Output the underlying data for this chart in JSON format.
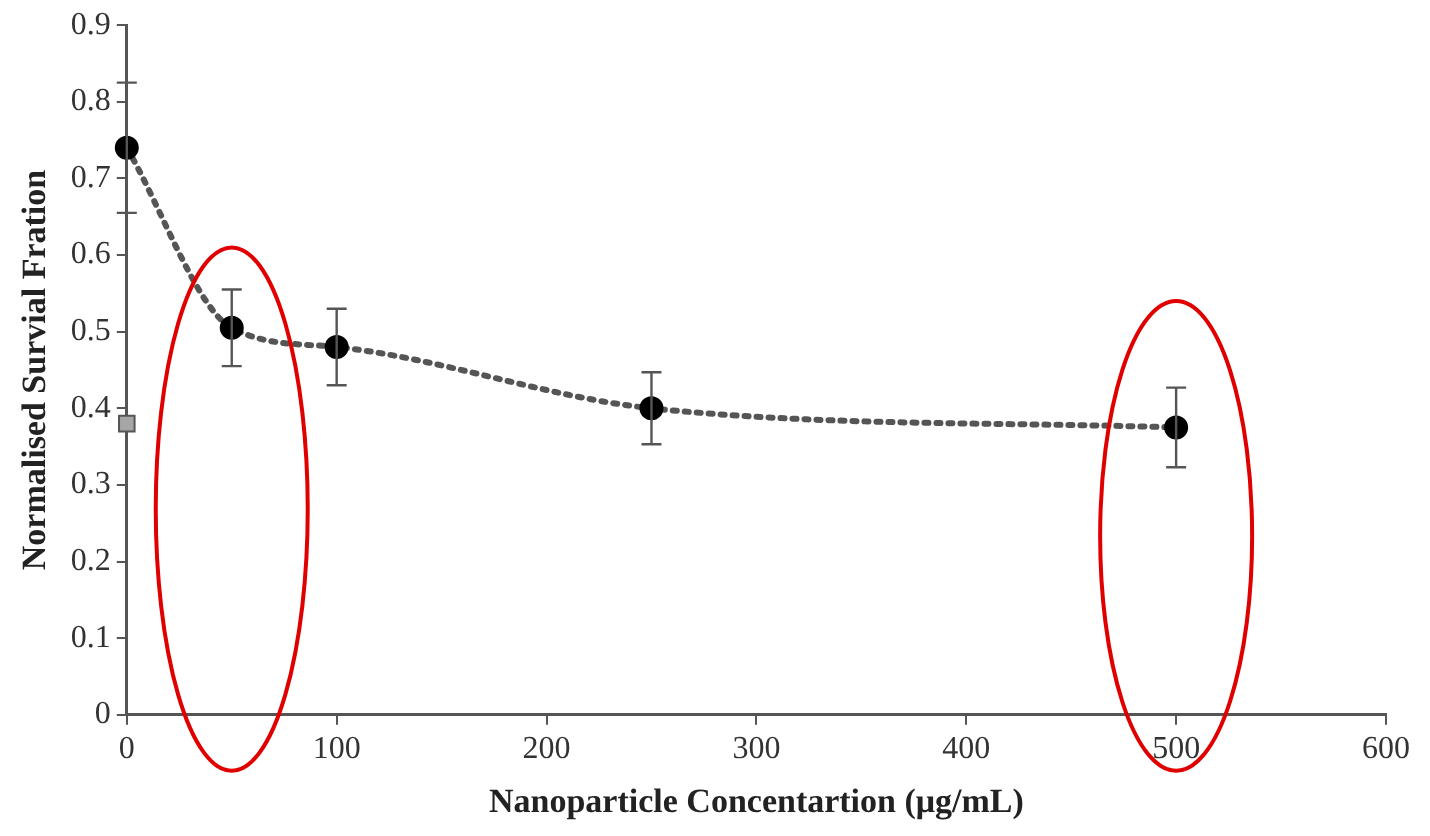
{
  "chart_data": {
    "type": "line",
    "xlabel": "Nanoparticle Concentartion (μg/mL)",
    "ylabel": "Normalised Survial Fration",
    "xlim": [
      0,
      600
    ],
    "xticks": [
      0,
      100,
      200,
      300,
      400,
      500,
      600
    ],
    "ylim": [
      0,
      0.9
    ],
    "yticks": [
      0,
      0.1,
      0.2,
      0.3,
      0.4,
      0.5,
      0.6,
      0.7,
      0.8,
      0.9
    ],
    "grid": false,
    "legend": false,
    "line_style": "dotted",
    "marker": "circle",
    "series": [
      {
        "color": "#000000",
        "x": [
          0,
          50,
          100,
          250,
          500
        ],
        "values": [
          0.74,
          0.505,
          0.48,
          0.4,
          0.375
        ],
        "errors": [
          0.085,
          0.05,
          0.05,
          0.047,
          0.052
        ]
      },
      {
        "type": "scatter",
        "color": "#a6a6a6",
        "marker": "square",
        "x": [
          0
        ],
        "values": [
          0.38
        ]
      }
    ]
  }
}
